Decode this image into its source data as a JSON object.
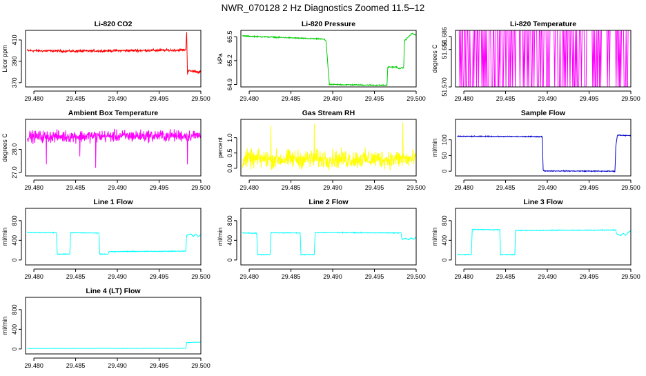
{
  "page_title": "NWR_070128  2 Hz Diagnostics Zoomed 11.5–12",
  "x_axis": {
    "ticks": [
      "29.480",
      "29.485",
      "29.490",
      "29.495",
      "29.500"
    ],
    "xlim": [
      29.479,
      29.5
    ]
  },
  "colors": {
    "red": "#ff0000",
    "green": "#00cc00",
    "magenta": "#ff00ff",
    "yellow": "#ffff00",
    "blue": "#0000cc",
    "cyan": "#00ffff"
  },
  "chart_data": [
    {
      "type": "line",
      "title": "Li-820 CO2",
      "ylabel": "Licor ppm",
      "yticks": [
        "370",
        "390",
        "410"
      ],
      "ylim": [
        366,
        419
      ],
      "color": "#ff0000",
      "series": [
        {
          "x": [
            29.4792,
            29.485,
            29.49,
            29.495,
            29.498,
            29.4982,
            29.4983,
            29.4984,
            29.4985,
            29.4986,
            29.5
          ],
          "y": [
            400,
            399.5,
            400,
            400.3,
            400.6,
            401,
            418,
            378,
            382,
            381,
            380
          ],
          "noise": 1.0
        }
      ]
    },
    {
      "type": "line",
      "title": "Li-820 Pressure",
      "ylabel": "kPa",
      "yticks": [
        "64.9",
        "65.2",
        "65.5"
      ],
      "ylim": [
        64.87,
        65.58
      ],
      "color": "#00cc00",
      "series": [
        {
          "x": [
            29.4792,
            29.4889,
            29.4892,
            29.4896,
            29.4965,
            29.4966,
            29.4977,
            29.4978,
            29.4985,
            29.4986,
            29.4995,
            29.5
          ],
          "y": [
            65.51,
            65.47,
            65.45,
            64.9,
            64.89,
            65.12,
            65.12,
            65.1,
            65.11,
            65.45,
            65.54,
            65.52
          ],
          "noise": 0.006
        }
      ]
    },
    {
      "type": "line",
      "title": "Li-820 Temperature",
      "ylabel": "degrees C",
      "yticks": [
        "51.570",
        "51.656",
        "51.686"
      ],
      "ylim": [
        51.57,
        51.7
      ],
      "color": "#ff00ff",
      "series": [
        {
          "x": [
            29.4792,
            29.5
          ],
          "y": [
            51.57,
            51.7
          ],
          "pattern": "toggle"
        }
      ]
    },
    {
      "type": "line",
      "title": "Ambient Box Temperature",
      "ylabel": "degrees C",
      "yticks": [
        "27.0",
        "28.0"
      ],
      "ylim": [
        26.85,
        29.3
      ],
      "color": "#ff00ff",
      "series": [
        {
          "x": [
            29.4792,
            29.5
          ],
          "y": [
            28.55,
            28.6
          ],
          "noise": 0.22,
          "spikes": [
            [
              29.4815,
              27.35
            ],
            [
              29.4855,
              27.7
            ],
            [
              29.4874,
              27.2
            ],
            [
              29.4984,
              27.35
            ]
          ]
        }
      ]
    },
    {
      "type": "line",
      "title": "Gas Stream RH",
      "ylabel": "percent",
      "yticks": [
        "0.0",
        "0.5",
        "1.0"
      ],
      "ylim": [
        -0.25,
        1.6
      ],
      "color": "#ffff00",
      "series": [
        {
          "x": [
            29.4792,
            29.5
          ],
          "y": [
            0.3,
            0.3
          ],
          "noise": 0.26,
          "spikes": [
            [
              29.4826,
              1.4
            ],
            [
              29.4878,
              1.45
            ],
            [
              29.4984,
              1.5
            ]
          ]
        }
      ]
    },
    {
      "type": "line",
      "title": "Sample Flow",
      "ylabel": "ml/min",
      "yticks": [
        "0",
        "50",
        "100"
      ],
      "ylim": [
        -15,
        165
      ],
      "color": "#0000cc",
      "series": [
        {
          "x": [
            29.4792,
            29.4894,
            29.4895,
            29.4981,
            29.4982,
            29.4984,
            29.5
          ],
          "y": [
            111,
            110,
            1,
            0,
            80,
            115,
            113
          ],
          "noise": 1.2
        }
      ]
    },
    {
      "type": "line",
      "title": "Line 1 Flow",
      "ylabel": "ml/min",
      "yticks": [
        "0",
        "400",
        "800"
      ],
      "ylim": [
        -100,
        1050
      ],
      "color": "#00ffff",
      "series": [
        {
          "x": [
            29.4792,
            29.4827,
            29.4828,
            29.4843,
            29.4844,
            29.4878,
            29.4879,
            29.4889,
            29.489,
            29.4982,
            29.4983,
            29.4988,
            29.4991,
            29.4994,
            29.4997,
            29.5
          ],
          "y": [
            560,
            555,
            120,
            120,
            555,
            550,
            120,
            120,
            170,
            180,
            500,
            530,
            480,
            530,
            470,
            520
          ],
          "noise": 7
        }
      ]
    },
    {
      "type": "line",
      "title": "Line 2 Flow",
      "ylabel": "ml/min",
      "yticks": [
        "0",
        "400",
        "800"
      ],
      "ylim": [
        -100,
        1050
      ],
      "color": "#00ffff",
      "series": [
        {
          "x": [
            29.4792,
            29.4809,
            29.481,
            29.4825,
            29.4826,
            29.4861,
            29.4862,
            29.4878,
            29.4879,
            29.4982,
            29.4983,
            29.4988,
            29.4991,
            29.4994,
            29.4997,
            29.5
          ],
          "y": [
            550,
            545,
            110,
            110,
            555,
            550,
            110,
            110,
            560,
            550,
            420,
            440,
            410,
            450,
            420,
            470
          ],
          "noise": 7
        }
      ]
    },
    {
      "type": "line",
      "title": "Line 3 Flow",
      "ylabel": "ml/min",
      "yticks": [
        "0",
        "400",
        "800"
      ],
      "ylim": [
        -100,
        1050
      ],
      "color": "#00ffff",
      "series": [
        {
          "x": [
            29.4792,
            29.4809,
            29.481,
            29.4843,
            29.4844,
            29.4861,
            29.4862,
            29.4982,
            29.4983,
            29.4988,
            29.4991,
            29.4994,
            29.4997,
            29.5
          ],
          "y": [
            110,
            110,
            620,
            615,
            110,
            110,
            600,
            610,
            530,
            500,
            540,
            500,
            570,
            590
          ],
          "noise": 7
        }
      ]
    },
    {
      "type": "line",
      "title": "Line 4 (LT) Flow",
      "ylabel": "ml/min",
      "yticks": [
        "0",
        "400",
        "800"
      ],
      "ylim": [
        -100,
        1050
      ],
      "color": "#00ffff",
      "series": [
        {
          "x": [
            29.4792,
            29.4982,
            29.4983,
            29.5
          ],
          "y": [
            10,
            15,
            130,
            140
          ],
          "noise": 3
        }
      ]
    }
  ]
}
